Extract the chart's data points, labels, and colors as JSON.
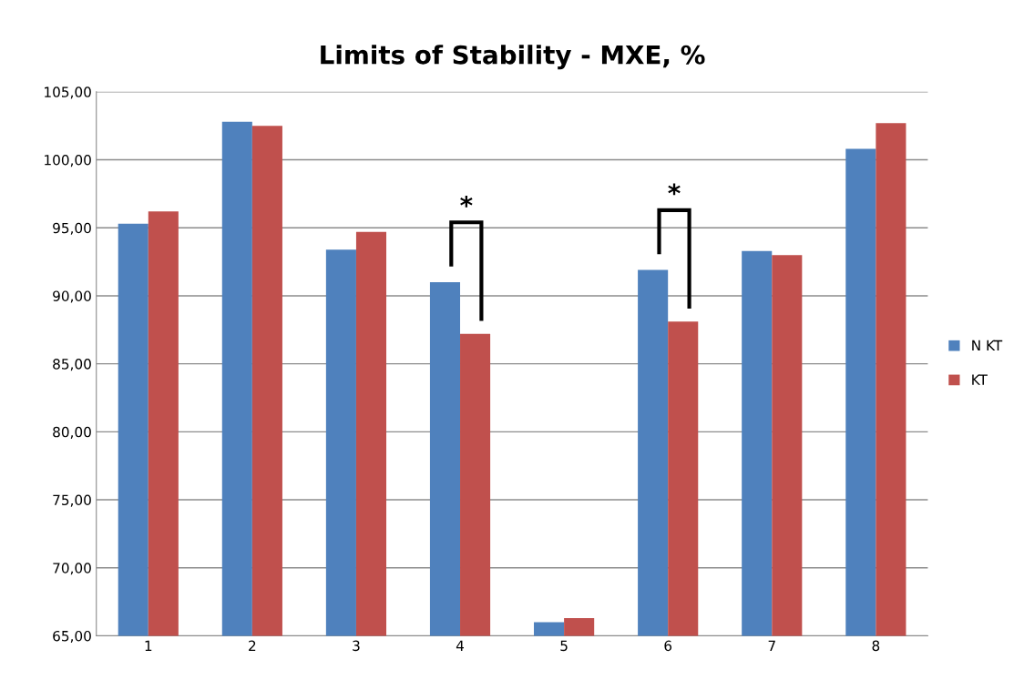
{
  "chart_data": {
    "type": "bar",
    "title": "Limits of Stability - MXE, %",
    "categories": [
      "1",
      "2",
      "3",
      "4",
      "5",
      "6",
      "7",
      "8"
    ],
    "series": [
      {
        "name": "N KT",
        "color": "#4f81bd",
        "values": [
          95.3,
          102.8,
          93.4,
          91.0,
          66.0,
          91.9,
          93.3,
          100.8
        ]
      },
      {
        "name": "KT",
        "color": "#c0504d",
        "values": [
          96.2,
          102.5,
          94.7,
          87.2,
          66.3,
          88.1,
          93.0,
          102.7
        ]
      }
    ],
    "ylim": [
      65,
      105
    ],
    "yticks": [
      {
        "value": 65,
        "label": "65,00"
      },
      {
        "value": 70,
        "label": "70,00"
      },
      {
        "value": 75,
        "label": "75,00"
      },
      {
        "value": 80,
        "label": "80,00"
      },
      {
        "value": 85,
        "label": "85,00"
      },
      {
        "value": 90,
        "label": "90,00"
      },
      {
        "value": 95,
        "label": "95,00"
      },
      {
        "value": 100,
        "label": "100,00"
      },
      {
        "value": 105,
        "label": "105,00"
      }
    ],
    "annotations": [
      "*",
      "*"
    ],
    "grid": "y",
    "legend": "right"
  }
}
